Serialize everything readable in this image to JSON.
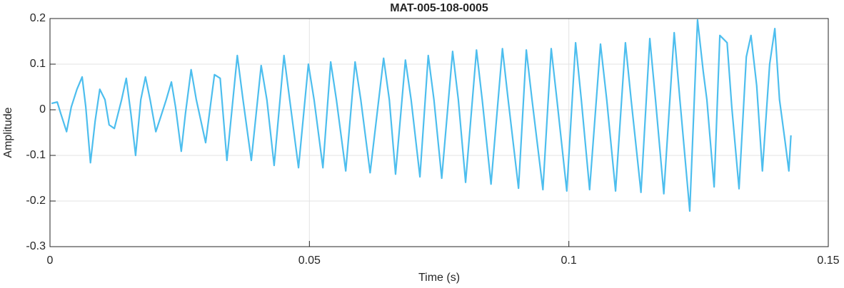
{
  "chart_data": {
    "type": "line",
    "title": "MAT-005-108-0005",
    "x_label": "Time (s)",
    "y_label": "Amplitude",
    "color": "#4dbeee",
    "grid": true,
    "xlim": [
      0,
      0.15
    ],
    "xticks": [
      0,
      0.05,
      0.1,
      0.15
    ],
    "ylim": [
      -0.3,
      0.2
    ],
    "yticks": [
      -0.3,
      -0.2,
      -0.1,
      0,
      0.1,
      0.2
    ],
    "x": [
      0.0003,
      0.0014,
      0.0021,
      0.0032,
      0.0041,
      0.0052,
      0.0062,
      0.0069,
      0.0078,
      0.0087,
      0.0096,
      0.0106,
      0.0114,
      0.0124,
      0.0138,
      0.0147,
      0.0156,
      0.0165,
      0.0175,
      0.0184,
      0.0193,
      0.0204,
      0.0213,
      0.0224,
      0.0234,
      0.0242,
      0.0253,
      0.0261,
      0.0272,
      0.0282,
      0.03,
      0.0317,
      0.0328,
      0.0341,
      0.0361,
      0.0372,
      0.0388,
      0.0407,
      0.0418,
      0.0432,
      0.0451,
      0.0462,
      0.0479,
      0.0498,
      0.0509,
      0.0526,
      0.0541,
      0.0552,
      0.057,
      0.0588,
      0.0599,
      0.0617,
      0.0643,
      0.0654,
      0.0666,
      0.0685,
      0.0696,
      0.0713,
      0.0729,
      0.074,
      0.0755,
      0.0776,
      0.0787,
      0.0801,
      0.0822,
      0.0833,
      0.085,
      0.0872,
      0.0883,
      0.0903,
      0.0918,
      0.0929,
      0.095,
      0.0966,
      0.0977,
      0.0996,
      0.1013,
      0.1024,
      0.104,
      0.1061,
      0.1073,
      0.109,
      0.1109,
      0.112,
      0.1139,
      0.1156,
      0.1167,
      0.1183,
      0.1203,
      0.1214,
      0.1233,
      0.1248,
      0.1259,
      0.1266,
      0.128,
      0.1291,
      0.1305,
      0.1314,
      0.1328,
      0.1342,
      0.1351,
      0.1362,
      0.1373,
      0.1387,
      0.1397,
      0.1406,
      0.1417,
      0.1424,
      0.1428
    ],
    "values": [
      0.014,
      0.017,
      -0.009,
      -0.048,
      0.006,
      0.045,
      0.072,
      0.006,
      -0.116,
      -0.025,
      0.045,
      0.022,
      -0.033,
      -0.041,
      0.022,
      0.069,
      -0.009,
      -0.1,
      0.022,
      0.072,
      0.022,
      -0.048,
      -0.017,
      0.022,
      0.061,
      0.006,
      -0.091,
      -0.009,
      0.088,
      0.022,
      -0.072,
      0.077,
      0.069,
      -0.111,
      0.119,
      0.022,
      -0.111,
      0.097,
      0.022,
      -0.122,
      0.119,
      0.022,
      -0.127,
      0.1,
      0.022,
      -0.127,
      0.105,
      0.022,
      -0.134,
      0.105,
      0.022,
      -0.138,
      0.113,
      0.022,
      -0.141,
      0.109,
      0.022,
      -0.147,
      0.119,
      0.022,
      -0.15,
      0.128,
      0.022,
      -0.159,
      0.131,
      0.022,
      -0.163,
      0.134,
      0.022,
      -0.172,
      0.131,
      0.022,
      -0.175,
      0.134,
      0.022,
      -0.178,
      0.147,
      0.022,
      -0.175,
      0.144,
      0.022,
      -0.178,
      0.147,
      0.022,
      -0.181,
      0.156,
      0.022,
      -0.184,
      0.169,
      0.022,
      -0.222,
      0.197,
      0.084,
      0.022,
      -0.169,
      0.163,
      0.147,
      0.006,
      -0.173,
      0.116,
      0.163,
      0.053,
      -0.134,
      0.1,
      0.178,
      0.022,
      -0.072,
      -0.134,
      -0.056
    ]
  }
}
